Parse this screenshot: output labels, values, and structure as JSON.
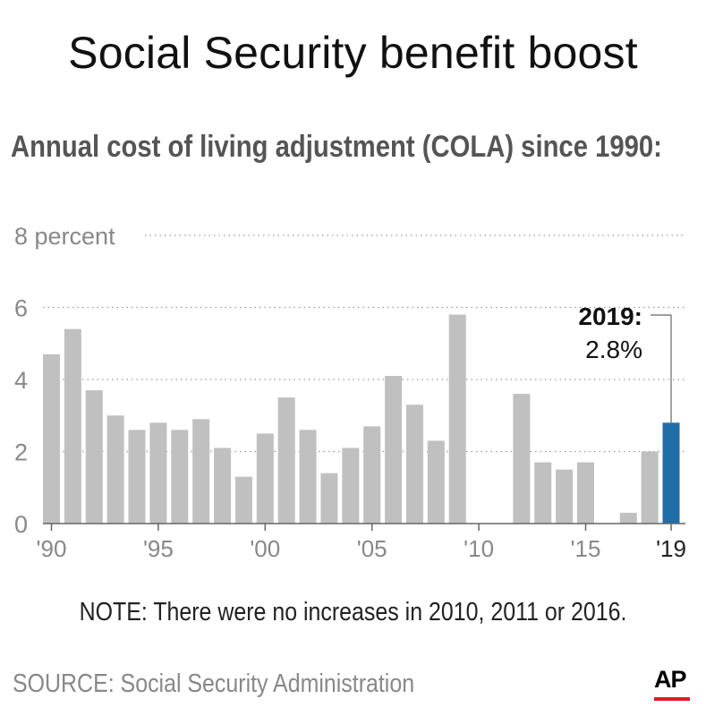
{
  "header": {
    "title": "Social Security benefit boost",
    "subtitle": "Annual cost of living adjustment (COLA) since 1990:"
  },
  "chart_data": {
    "type": "bar",
    "title": "Social Security benefit boost",
    "subtitle": "Annual cost of living adjustment (COLA) since 1990:",
    "xlabel": "",
    "ylabel": "",
    "categories": [
      1990,
      1991,
      1992,
      1993,
      1994,
      1995,
      1996,
      1997,
      1998,
      1999,
      2000,
      2001,
      2002,
      2003,
      2004,
      2005,
      2006,
      2007,
      2008,
      2009,
      2010,
      2011,
      2012,
      2013,
      2014,
      2015,
      2016,
      2017,
      2018,
      2019
    ],
    "values": [
      4.7,
      5.4,
      3.7,
      3.0,
      2.6,
      2.8,
      2.6,
      2.9,
      2.1,
      1.3,
      2.5,
      3.5,
      2.6,
      1.4,
      2.1,
      2.7,
      4.1,
      3.3,
      2.3,
      5.8,
      0,
      0,
      3.6,
      1.7,
      1.5,
      1.7,
      0,
      0.3,
      2.0,
      2.8
    ],
    "ylim": [
      0,
      8
    ],
    "y_ticks": [
      "0",
      "2",
      "4",
      "6",
      "8 percent"
    ],
    "x_tick_labels": [
      "'90",
      "'95",
      "'00",
      "'05",
      "'10",
      "'15",
      "'19"
    ],
    "grid": "dotted horizontal",
    "bar_color": "#c0c0c0",
    "highlight_color": "#1f6ea8",
    "highlight_index": 29,
    "annotation": {
      "label": "2019:",
      "value": "2.8%"
    }
  },
  "footer": {
    "note": "NOTE: There were no increases in 2010, 2011 or 2016.",
    "source": "SOURCE: Social Security Administration",
    "logo": "AP"
  },
  "colors": {
    "logo_red": "#d61f26"
  }
}
